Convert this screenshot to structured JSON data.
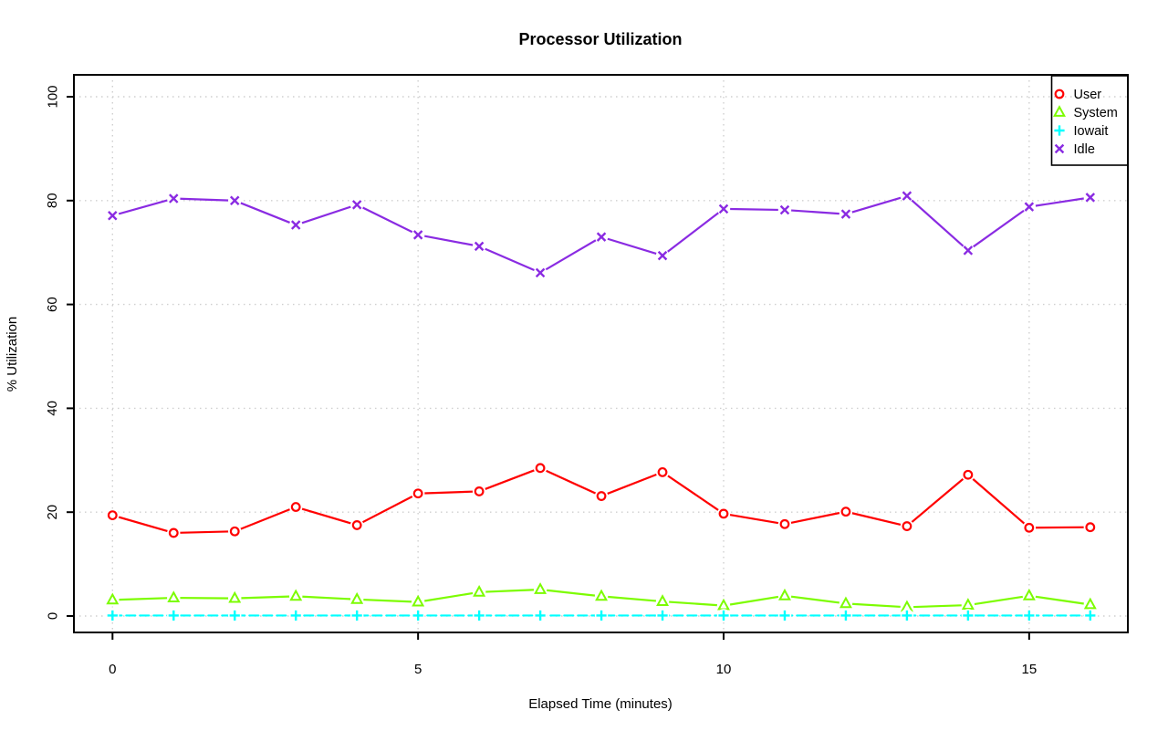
{
  "chart_data": {
    "type": "line",
    "title": "Processor Utilization",
    "xlabel": "Elapsed Time (minutes)",
    "ylabel": "% Utilization",
    "x": [
      0,
      1,
      2,
      3,
      4,
      5,
      6,
      7,
      8,
      9,
      10,
      11,
      12,
      13,
      14,
      15,
      16
    ],
    "xlim": [
      0,
      16
    ],
    "ylim": [
      0,
      100
    ],
    "xticks": [
      0,
      5,
      10,
      15
    ],
    "yticks": [
      0,
      20,
      40,
      60,
      80,
      100
    ],
    "grid": true,
    "grid_style": "dotted",
    "legend_position": "top-right-inside",
    "series": [
      {
        "name": "User",
        "color": "#ff0000",
        "marker": "circle",
        "line": "solid",
        "values": [
          19.4,
          16.0,
          16.3,
          21.0,
          17.5,
          23.6,
          24.0,
          28.5,
          23.1,
          27.7,
          19.7,
          17.7,
          20.1,
          17.3,
          27.2,
          17.0,
          17.1
        ]
      },
      {
        "name": "System",
        "color": "#7cfc00",
        "marker": "triangle",
        "line": "solid",
        "values": [
          3.1,
          3.5,
          3.4,
          3.8,
          3.2,
          2.7,
          4.6,
          5.1,
          3.8,
          2.8,
          2.0,
          3.9,
          2.4,
          1.7,
          2.1,
          3.9,
          2.2
        ]
      },
      {
        "name": "Iowait",
        "color": "#00ffff",
        "marker": "plus",
        "line": "dashed",
        "values": [
          0.1,
          0.1,
          0.1,
          0.1,
          0.1,
          0.1,
          0.1,
          0.1,
          0.1,
          0.1,
          0.1,
          0.1,
          0.1,
          0.1,
          0.1,
          0.1,
          0.1
        ]
      },
      {
        "name": "Idle",
        "color": "#8a2be2",
        "marker": "x",
        "line": "solid",
        "values": [
          77.1,
          80.4,
          80.0,
          75.3,
          79.2,
          73.4,
          71.2,
          66.1,
          73.0,
          69.4,
          78.4,
          78.2,
          77.4,
          80.9,
          70.4,
          78.8,
          80.6
        ]
      }
    ]
  },
  "colors": {
    "background": "#ffffff",
    "axis": "#000000",
    "grid": "#cfcfcf",
    "text": "#000000"
  }
}
